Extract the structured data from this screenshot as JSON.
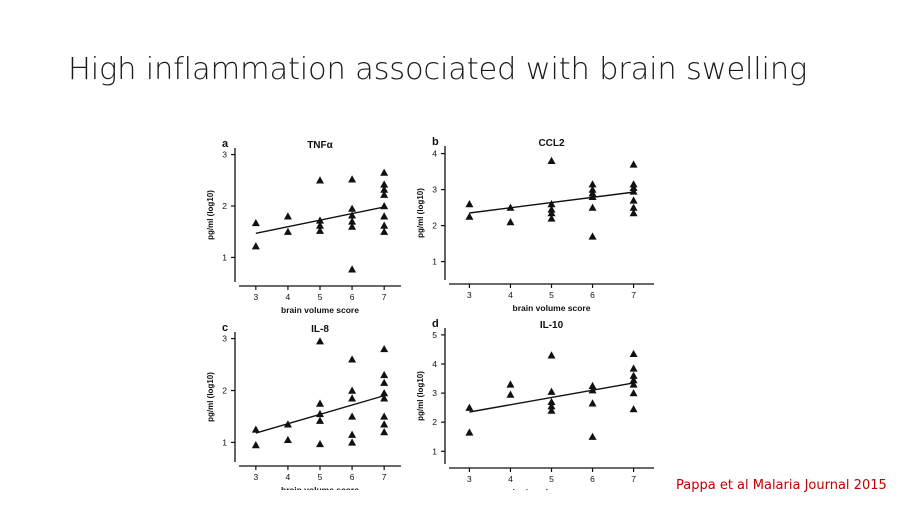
{
  "slide": {
    "title": "High inflammation associated with brain swelling",
    "citation": "Pappa et al Malaria Journal 2015"
  },
  "chart_data": [
    {
      "type": "scatter",
      "panel": "a",
      "title": "TNFα",
      "xlabel": "brain volume score",
      "ylabel": "pg/ml (log10)",
      "x_ticks": [
        3,
        4,
        5,
        6,
        7
      ],
      "y_ticks": [
        1,
        2,
        3
      ],
      "xlim": [
        2.6,
        7.4
      ],
      "ylim": [
        0.6,
        3.05
      ],
      "points": [
        {
          "x": 3,
          "y": 1.67
        },
        {
          "x": 3,
          "y": 1.22
        },
        {
          "x": 4,
          "y": 1.8
        },
        {
          "x": 4,
          "y": 1.5
        },
        {
          "x": 5,
          "y": 2.5
        },
        {
          "x": 5,
          "y": 1.72
        },
        {
          "x": 5,
          "y": 1.62
        },
        {
          "x": 5,
          "y": 1.52
        },
        {
          "x": 6,
          "y": 2.52
        },
        {
          "x": 6,
          "y": 1.95
        },
        {
          "x": 6,
          "y": 1.82
        },
        {
          "x": 6,
          "y": 1.7
        },
        {
          "x": 6,
          "y": 1.6
        },
        {
          "x": 6,
          "y": 0.77
        },
        {
          "x": 7,
          "y": 2.65
        },
        {
          "x": 7,
          "y": 2.42
        },
        {
          "x": 7,
          "y": 2.32
        },
        {
          "x": 7,
          "y": 2.22
        },
        {
          "x": 7,
          "y": 2.0
        },
        {
          "x": 7,
          "y": 1.8
        },
        {
          "x": 7,
          "y": 1.62
        },
        {
          "x": 7,
          "y": 1.5
        }
      ],
      "trendline": {
        "x": [
          3,
          7
        ],
        "y": [
          1.47,
          1.98
        ]
      }
    },
    {
      "type": "scatter",
      "panel": "b",
      "title": "CCL2",
      "xlabel": "brain volume score",
      "ylabel": "pg/ml (log10)",
      "x_ticks": [
        3,
        4,
        5,
        6,
        7
      ],
      "y_ticks": [
        1,
        2,
        3,
        4
      ],
      "xlim": [
        2.6,
        7.4
      ],
      "ylim": [
        0.6,
        4.1
      ],
      "points": [
        {
          "x": 3,
          "y": 2.6
        },
        {
          "x": 3,
          "y": 2.25
        },
        {
          "x": 4,
          "y": 2.5
        },
        {
          "x": 4,
          "y": 2.1
        },
        {
          "x": 5,
          "y": 3.8
        },
        {
          "x": 5,
          "y": 2.6
        },
        {
          "x": 5,
          "y": 2.45
        },
        {
          "x": 5,
          "y": 2.35
        },
        {
          "x": 5,
          "y": 2.2
        },
        {
          "x": 6,
          "y": 3.15
        },
        {
          "x": 6,
          "y": 3.0
        },
        {
          "x": 6,
          "y": 2.9
        },
        {
          "x": 6,
          "y": 2.8
        },
        {
          "x": 6,
          "y": 2.5
        },
        {
          "x": 6,
          "y": 1.7
        },
        {
          "x": 7,
          "y": 3.7
        },
        {
          "x": 7,
          "y": 3.15
        },
        {
          "x": 7,
          "y": 3.05
        },
        {
          "x": 7,
          "y": 2.95
        },
        {
          "x": 7,
          "y": 2.7
        },
        {
          "x": 7,
          "y": 2.5
        },
        {
          "x": 7,
          "y": 2.35
        }
      ],
      "trendline": {
        "x": [
          3,
          7
        ],
        "y": [
          2.35,
          2.93
        ]
      }
    },
    {
      "type": "scatter",
      "panel": "c",
      "title": "IL-8",
      "xlabel": "brain volume score",
      "ylabel": "pg/ml (log10)",
      "x_ticks": [
        3,
        4,
        5,
        6,
        7
      ],
      "y_ticks": [
        1,
        2,
        3
      ],
      "xlim": [
        2.6,
        7.4
      ],
      "ylim": [
        0.7,
        3.05
      ],
      "points": [
        {
          "x": 3,
          "y": 1.25
        },
        {
          "x": 3,
          "y": 0.95
        },
        {
          "x": 4,
          "y": 1.35
        },
        {
          "x": 4,
          "y": 1.05
        },
        {
          "x": 5,
          "y": 2.95
        },
        {
          "x": 5,
          "y": 1.75
        },
        {
          "x": 5,
          "y": 1.55
        },
        {
          "x": 5,
          "y": 1.42
        },
        {
          "x": 5,
          "y": 0.97
        },
        {
          "x": 6,
          "y": 2.6
        },
        {
          "x": 6,
          "y": 2.0
        },
        {
          "x": 6,
          "y": 1.85
        },
        {
          "x": 6,
          "y": 1.5
        },
        {
          "x": 6,
          "y": 1.15
        },
        {
          "x": 6,
          "y": 1.0
        },
        {
          "x": 7,
          "y": 2.8
        },
        {
          "x": 7,
          "y": 2.3
        },
        {
          "x": 7,
          "y": 2.15
        },
        {
          "x": 7,
          "y": 1.95
        },
        {
          "x": 7,
          "y": 1.85
        },
        {
          "x": 7,
          "y": 1.5
        },
        {
          "x": 7,
          "y": 1.35
        },
        {
          "x": 7,
          "y": 1.2
        }
      ],
      "trendline": {
        "x": [
          3,
          7
        ],
        "y": [
          1.18,
          1.9
        ]
      }
    },
    {
      "type": "scatter",
      "panel": "d",
      "title": "IL-10",
      "xlabel": "brain volume score",
      "ylabel": "pg/ml (log10)",
      "x_ticks": [
        3,
        4,
        5,
        6,
        7
      ],
      "y_ticks": [
        1,
        2,
        3,
        4,
        5
      ],
      "xlim": [
        2.6,
        7.4
      ],
      "ylim": [
        0.7,
        5.1
      ],
      "points": [
        {
          "x": 3,
          "y": 2.5
        },
        {
          "x": 3,
          "y": 1.65
        },
        {
          "x": 4,
          "y": 3.3
        },
        {
          "x": 4,
          "y": 2.95
        },
        {
          "x": 5,
          "y": 4.3
        },
        {
          "x": 5,
          "y": 3.05
        },
        {
          "x": 5,
          "y": 2.7
        },
        {
          "x": 5,
          "y": 2.55
        },
        {
          "x": 5,
          "y": 2.4
        },
        {
          "x": 6,
          "y": 3.25
        },
        {
          "x": 6,
          "y": 3.1
        },
        {
          "x": 6,
          "y": 2.65
        },
        {
          "x": 6,
          "y": 1.5
        },
        {
          "x": 7,
          "y": 4.35
        },
        {
          "x": 7,
          "y": 3.85
        },
        {
          "x": 7,
          "y": 3.6
        },
        {
          "x": 7,
          "y": 3.45
        },
        {
          "x": 7,
          "y": 3.3
        },
        {
          "x": 7,
          "y": 3.0
        },
        {
          "x": 7,
          "y": 2.45
        }
      ],
      "trendline": {
        "x": [
          3,
          7
        ],
        "y": [
          2.35,
          3.35
        ]
      }
    }
  ],
  "colors": {
    "marker": "#111111",
    "axis": "#111111",
    "citation": "#c00000"
  }
}
